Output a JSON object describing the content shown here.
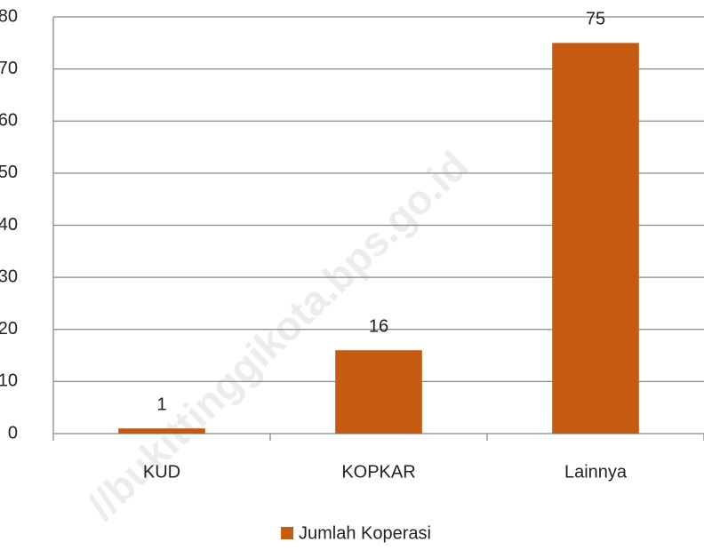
{
  "chart_data": {
    "type": "bar",
    "categories": [
      "KUD",
      "KOPKAR",
      "Lainnya"
    ],
    "series": [
      {
        "name": "Jumlah Koperasi",
        "color": "#c55a11",
        "values": [
          1,
          16,
          75
        ]
      }
    ],
    "ylim": [
      0,
      80
    ],
    "yticks": [
      0,
      10,
      20,
      30,
      40,
      50,
      60,
      70,
      80
    ],
    "grid": true,
    "legend": "bottom",
    "watermark": "//bukittinggikota.bps.go.id"
  }
}
